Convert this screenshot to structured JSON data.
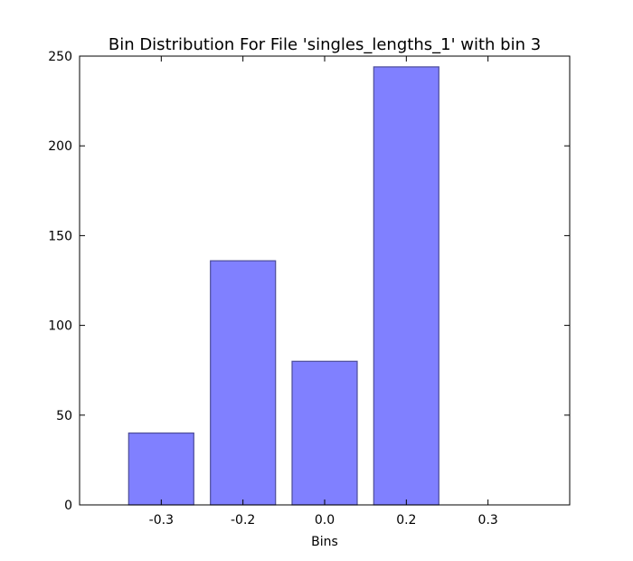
{
  "chart_data": {
    "type": "bar",
    "title": "Bin Distribution For File 'singles_lengths_1' with bin 3",
    "xlabel": "Bins",
    "ylabel": "",
    "categories": [
      "-0.3",
      "-0.2",
      "0.0",
      "0.2",
      "0.3"
    ],
    "values": [
      40,
      136,
      80,
      244,
      0
    ],
    "ylim": [
      0,
      250
    ],
    "yticks": [
      "0",
      "50",
      "100",
      "150",
      "200",
      "250"
    ],
    "grid": false,
    "legend": "none",
    "colors": {
      "bar_fill": "#8080ff",
      "bar_edge": "#4d4d99",
      "axis": "#000000"
    }
  }
}
